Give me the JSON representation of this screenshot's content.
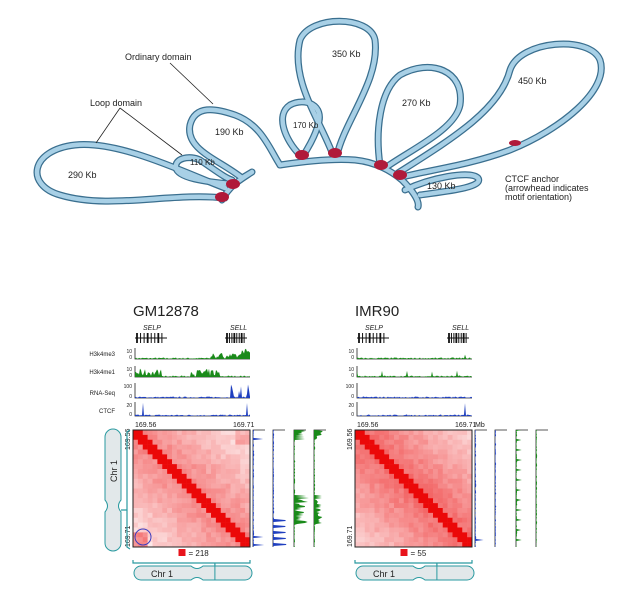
{
  "top_diagram": {
    "labels": {
      "ordinary": "Ordinary domain",
      "loop": "Loop domain"
    },
    "loops": [
      "290 Kb",
      "110 Kb",
      "190 Kb",
      "170 Kb",
      "350 Kb",
      "270 Kb",
      "450 Kb",
      "130 Kb"
    ],
    "legend": {
      "line1": "CTCF anchor",
      "line2": "(arrowhead indicates",
      "line3": "motif orientation)"
    },
    "colors": {
      "chromatin": "#a8d0e6",
      "ctcf": "#b01a3a"
    }
  },
  "panels": [
    {
      "title": "GM12878",
      "genes": [
        "SELP",
        "SELL"
      ],
      "tracks": [
        {
          "name": "H3k4me3",
          "max": "10",
          "min": "0",
          "color": "#1a8a1a"
        },
        {
          "name": "H3k4me1",
          "max": "10",
          "min": "0",
          "color": "#1a8a1a"
        },
        {
          "name": "RNA-Seq",
          "max": "100",
          "min": "0",
          "color": "#1f3fbf"
        },
        {
          "name": "CTCF",
          "max": "20",
          "min": "0",
          "color": "#1f3fbf"
        }
      ],
      "x_start": "169.56",
      "x_end": "169.71",
      "unit": "",
      "scale_value": "= 218",
      "chrom": "Chr 1"
    },
    {
      "title": "IMR90",
      "genes": [
        "SELP",
        "SELL"
      ],
      "tracks": [
        {
          "name": "",
          "max": "10",
          "min": "0",
          "color": "#1a8a1a"
        },
        {
          "name": "",
          "max": "10",
          "min": "0",
          "color": "#1a8a1a"
        },
        {
          "name": "",
          "max": "100",
          "min": "0",
          "color": "#1f3fbf"
        },
        {
          "name": "",
          "max": "20",
          "min": "0",
          "color": "#1f3fbf"
        }
      ],
      "x_start": "169.56",
      "x_end": "169.71",
      "unit": "Mb",
      "scale_value": "= 55",
      "chrom": "Chr 1"
    }
  ],
  "left_chrom": "Chr 1"
}
